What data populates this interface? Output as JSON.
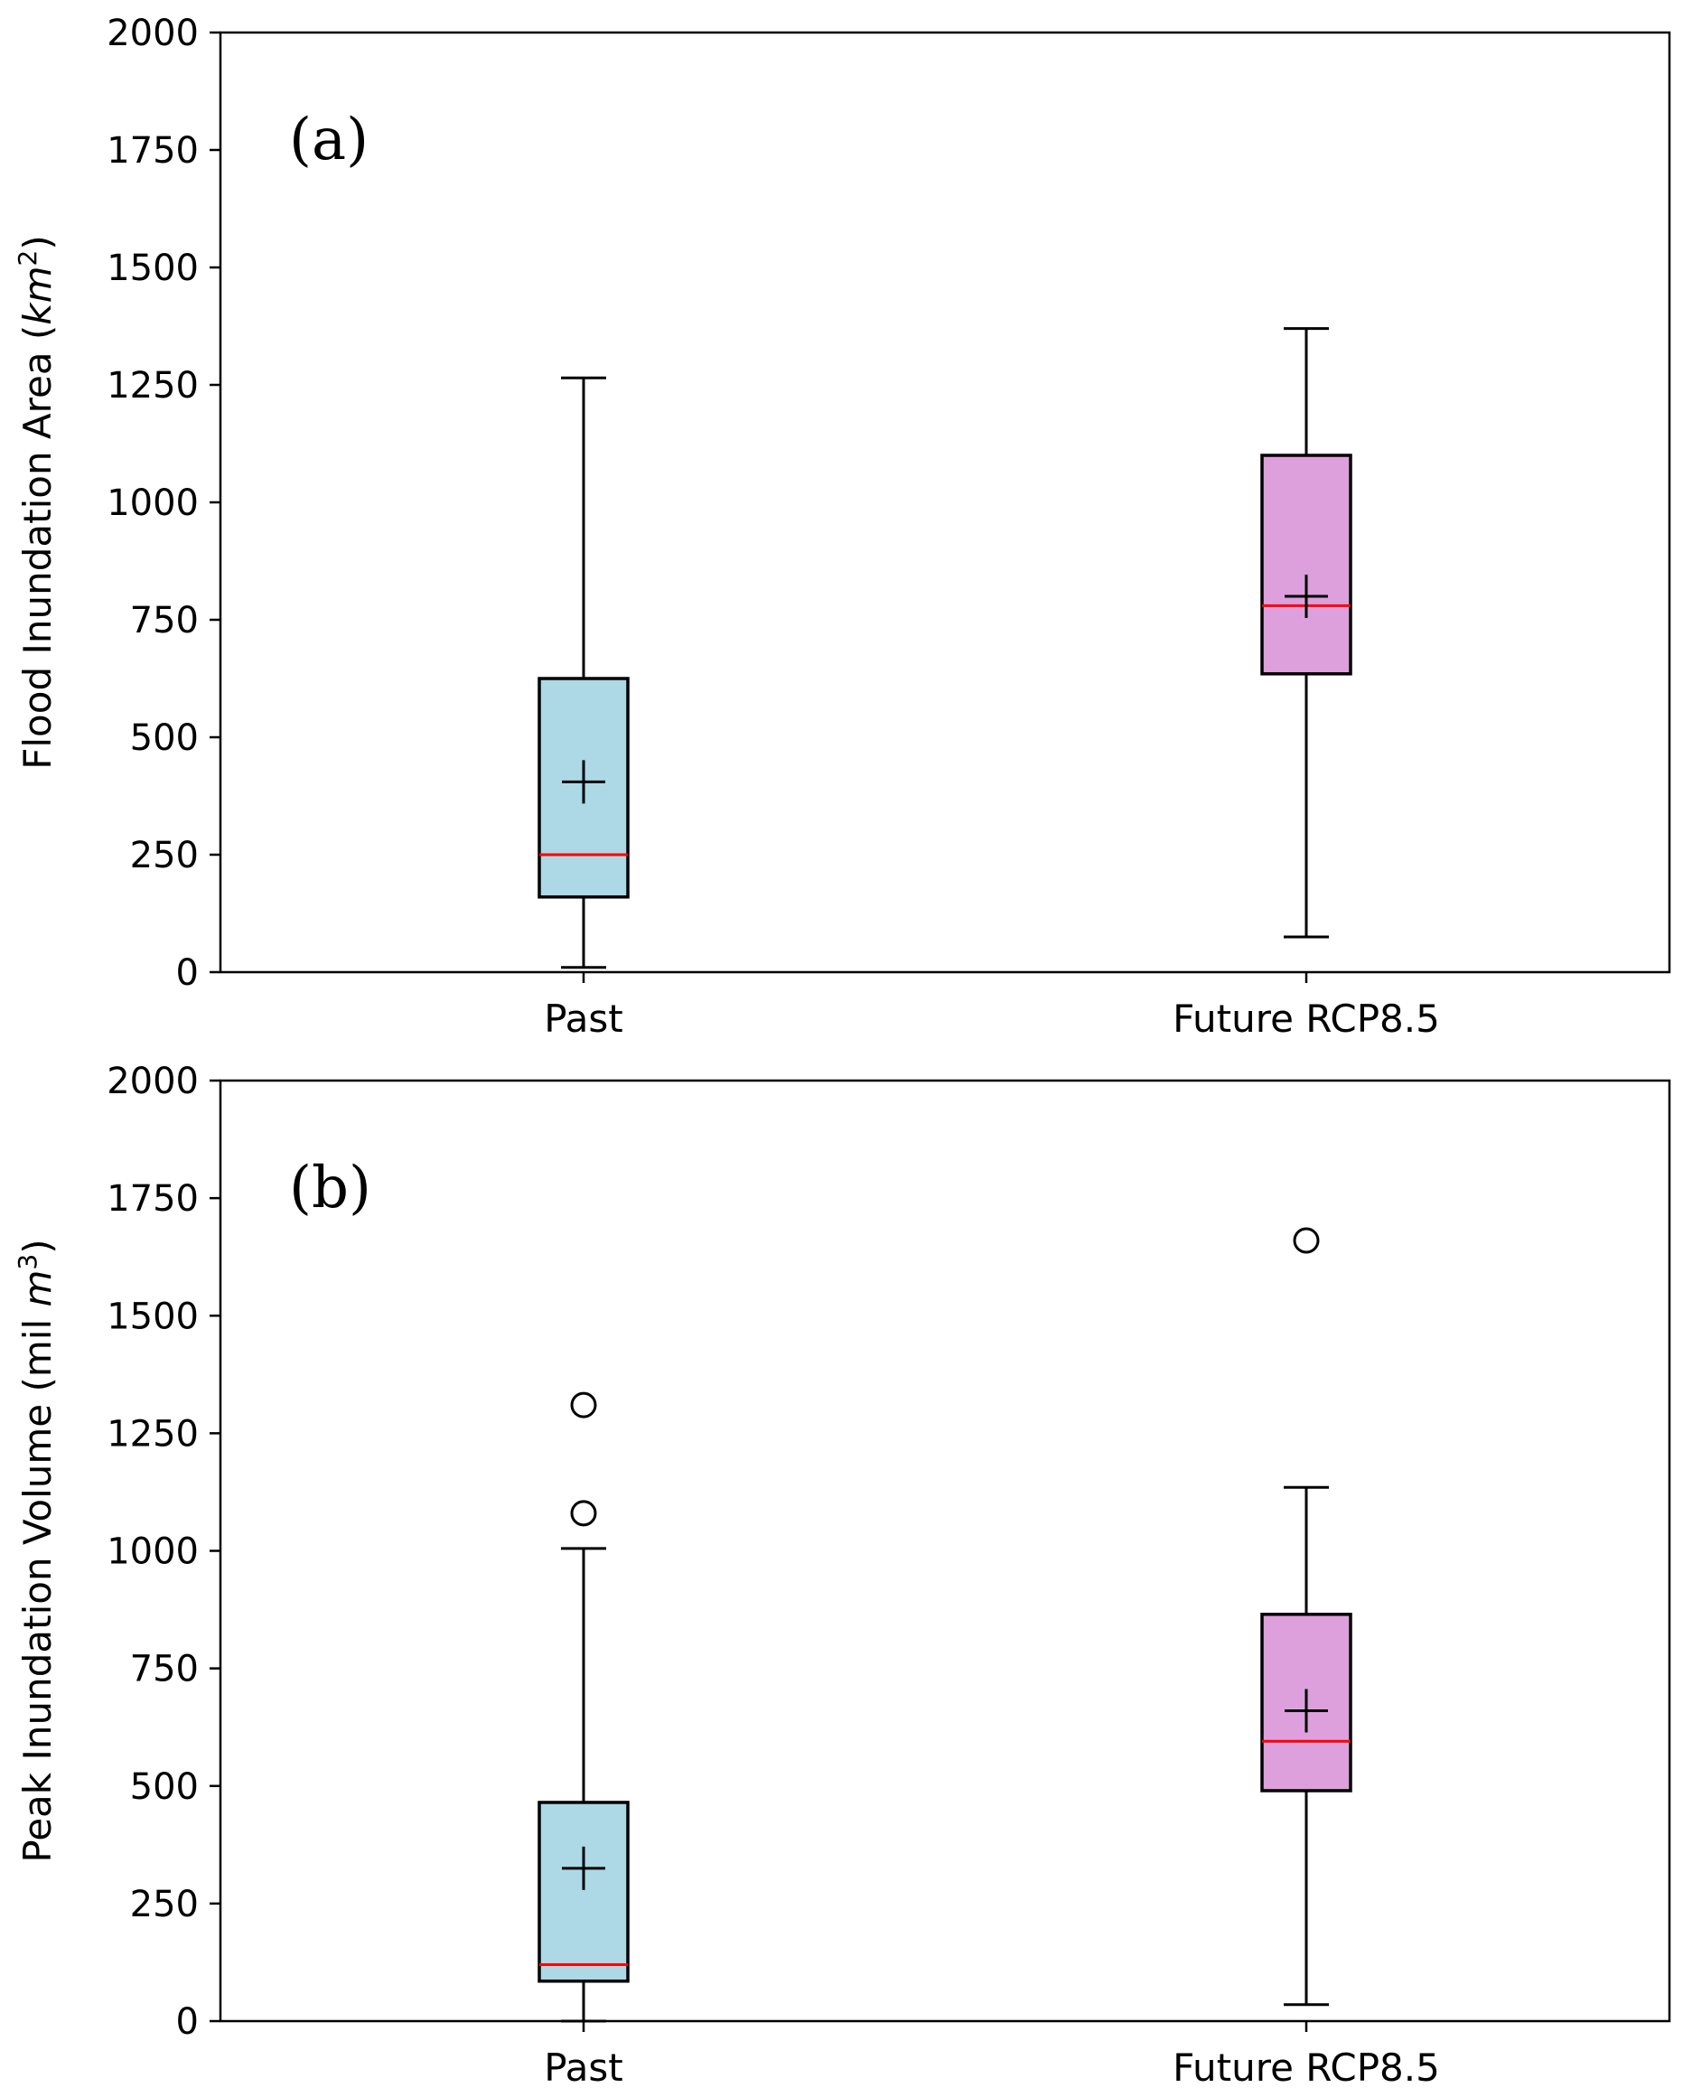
{
  "chart_data": [
    {
      "type": "box",
      "panel_label": "(a)",
      "ylabel": "Flood Inundation Area (km²)",
      "ylabel_main": "Flood Inundation Area (",
      "ylabel_unit": "km",
      "ylabel_sup": "2",
      "ylabel_close": ")",
      "ylim": [
        0,
        2000
      ],
      "yticks": [
        0,
        250,
        500,
        750,
        1000,
        1250,
        1500,
        1750,
        2000
      ],
      "categories": [
        "Past",
        "Future RCP8.5"
      ],
      "boxes": [
        {
          "category": "Past",
          "whisker_low": 10,
          "q1": 160,
          "median": 250,
          "q3": 625,
          "whisker_high": 1265,
          "mean": 405,
          "outliers": [],
          "color": "#add8e6"
        },
        {
          "category": "Future RCP8.5",
          "whisker_low": 75,
          "q1": 635,
          "median": 780,
          "q3": 1100,
          "whisker_high": 1370,
          "mean": 800,
          "outliers": [],
          "color": "#dda0dd"
        }
      ],
      "median_color": "#ff0000",
      "grid": false
    },
    {
      "type": "box",
      "panel_label": "(b)",
      "ylabel": "Peak Inundation Volume (mil m³)",
      "ylabel_main": "Peak Inundation Volume (mil ",
      "ylabel_unit": "m",
      "ylabel_sup": "3",
      "ylabel_close": ")",
      "ylim": [
        0,
        2000
      ],
      "yticks": [
        0,
        250,
        500,
        750,
        1000,
        1250,
        1500,
        1750,
        2000
      ],
      "categories": [
        "Past",
        "Future RCP8.5"
      ],
      "boxes": [
        {
          "category": "Past",
          "whisker_low": 0,
          "q1": 85,
          "median": 120,
          "q3": 465,
          "whisker_high": 1005,
          "mean": 325,
          "outliers": [
            1080,
            1310
          ],
          "color": "#add8e6"
        },
        {
          "category": "Future RCP8.5",
          "whisker_low": 35,
          "q1": 490,
          "median": 595,
          "q3": 865,
          "whisker_high": 1135,
          "mean": 660,
          "outliers": [
            1660
          ],
          "color": "#dda0dd"
        }
      ],
      "median_color": "#ff0000",
      "grid": false
    }
  ]
}
